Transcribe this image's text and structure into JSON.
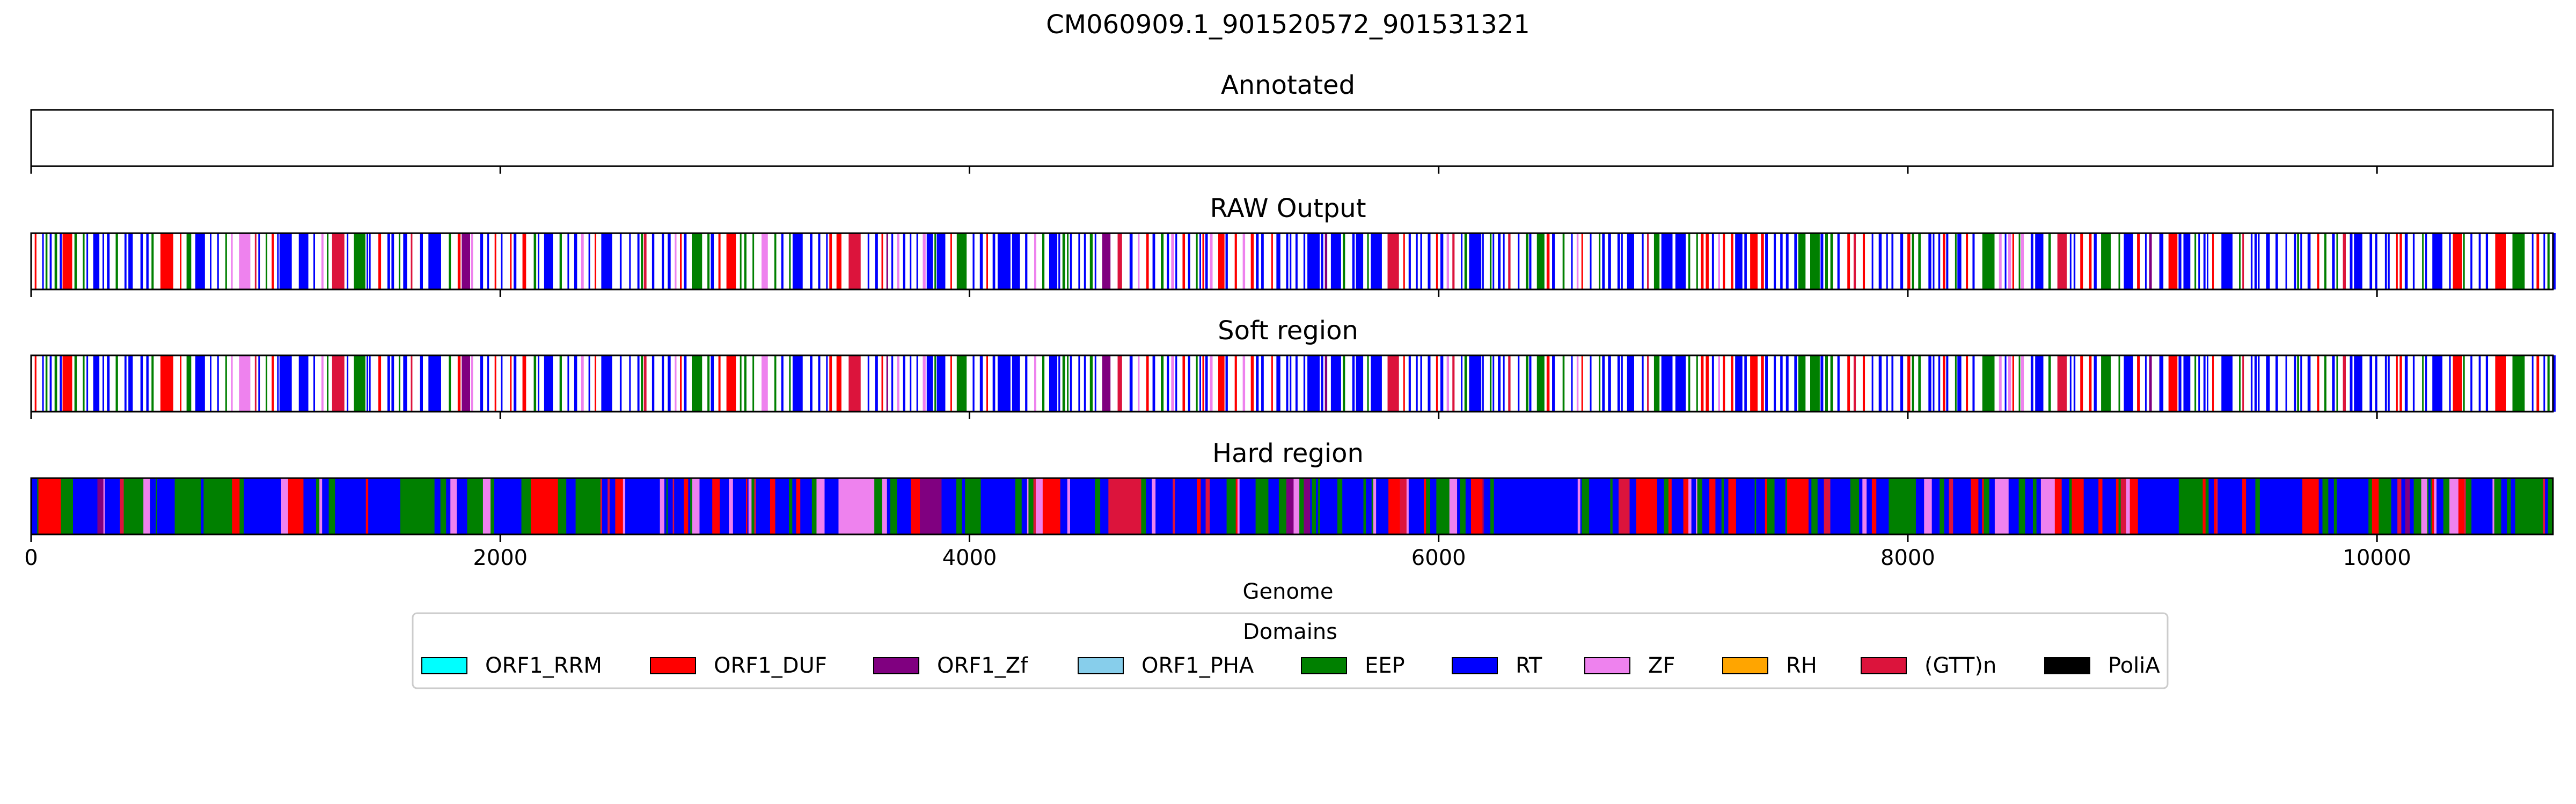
{
  "chart_data": {
    "type": "bar",
    "title": "CM060909.1_901520572_901531321",
    "xlabel": "Genome",
    "ylabel": "",
    "xlim": [
      0,
      10750
    ],
    "x_ticks": [
      0,
      2000,
      4000,
      6000,
      8000,
      10000
    ],
    "x_tick_labels": [
      "0",
      "2000",
      "4000",
      "6000",
      "8000",
      "10000"
    ],
    "grid": false,
    "legend_placement": "bottom-center",
    "legend": {
      "title": "Domains",
      "entries": [
        {
          "name": "ORF1_RRM",
          "color": "#00ffff"
        },
        {
          "name": "ORF1_DUF",
          "color": "#ff0000"
        },
        {
          "name": "ORF1_Zf",
          "color": "#800080"
        },
        {
          "name": "ORF1_PHA",
          "color": "#87ceeb"
        },
        {
          "name": "EEP",
          "color": "#008000"
        },
        {
          "name": "RT",
          "color": "#0000ff"
        },
        {
          "name": "ZF",
          "color": "#ee82ee"
        },
        {
          "name": "RH",
          "color": "#ffa500"
        },
        {
          "name": "(GTT)n",
          "color": "#dc143c"
        },
        {
          "name": "PoliA",
          "color": "#000000"
        }
      ]
    },
    "panels": [
      {
        "name": "Annotated",
        "kind": "empty"
      },
      {
        "name": "RAW Output",
        "kind": "sparse",
        "seed": 17
      },
      {
        "name": "Soft region",
        "kind": "sparse",
        "seed": 17
      },
      {
        "name": "Hard region",
        "kind": "dense",
        "seed": 91
      }
    ]
  }
}
